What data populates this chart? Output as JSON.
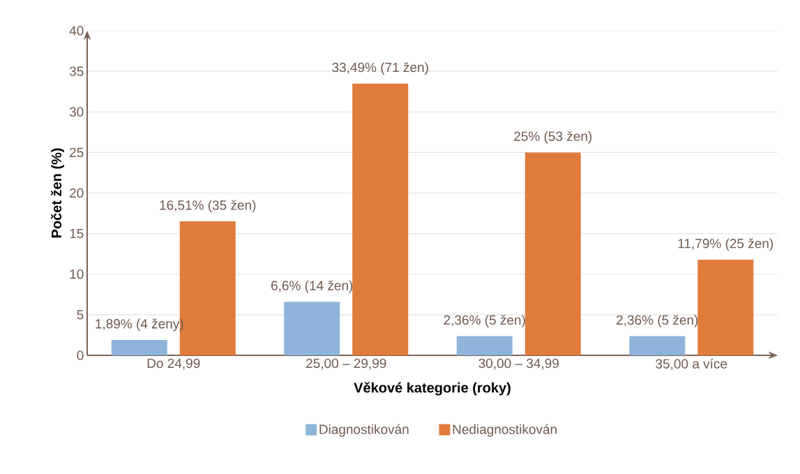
{
  "chart_data": {
    "type": "bar",
    "xlabel": "Věkové kategorie (roky)",
    "ylabel": "Počet žen (%)",
    "categories": [
      "Do 24,99",
      "25,00 – 29,99",
      "30,00 – 34,99",
      "35,00 a více"
    ],
    "series": [
      {
        "name": "Diagnostikován",
        "color": "#8fb4d9",
        "values": [
          1.89,
          6.6,
          2.36,
          2.36
        ],
        "value_labels": [
          "1,89% (4 ženy)",
          "6,6% (14 žen)",
          "2,36% (5 žen)",
          "2,36% (5 žen)"
        ]
      },
      {
        "name": "Nediagnostikován",
        "color": "#e07b3c",
        "values": [
          16.51,
          33.49,
          25,
          11.79
        ],
        "value_labels": [
          "16,51% (35 žen)",
          "33,49% (71 žen)",
          "25% (53 žen)",
          "11,79% (25 žen)"
        ]
      }
    ],
    "ylim": [
      0,
      40
    ],
    "yticks": [
      0,
      5,
      10,
      15,
      20,
      25,
      30,
      35,
      40
    ],
    "grid": "y",
    "legend": "bottom"
  }
}
